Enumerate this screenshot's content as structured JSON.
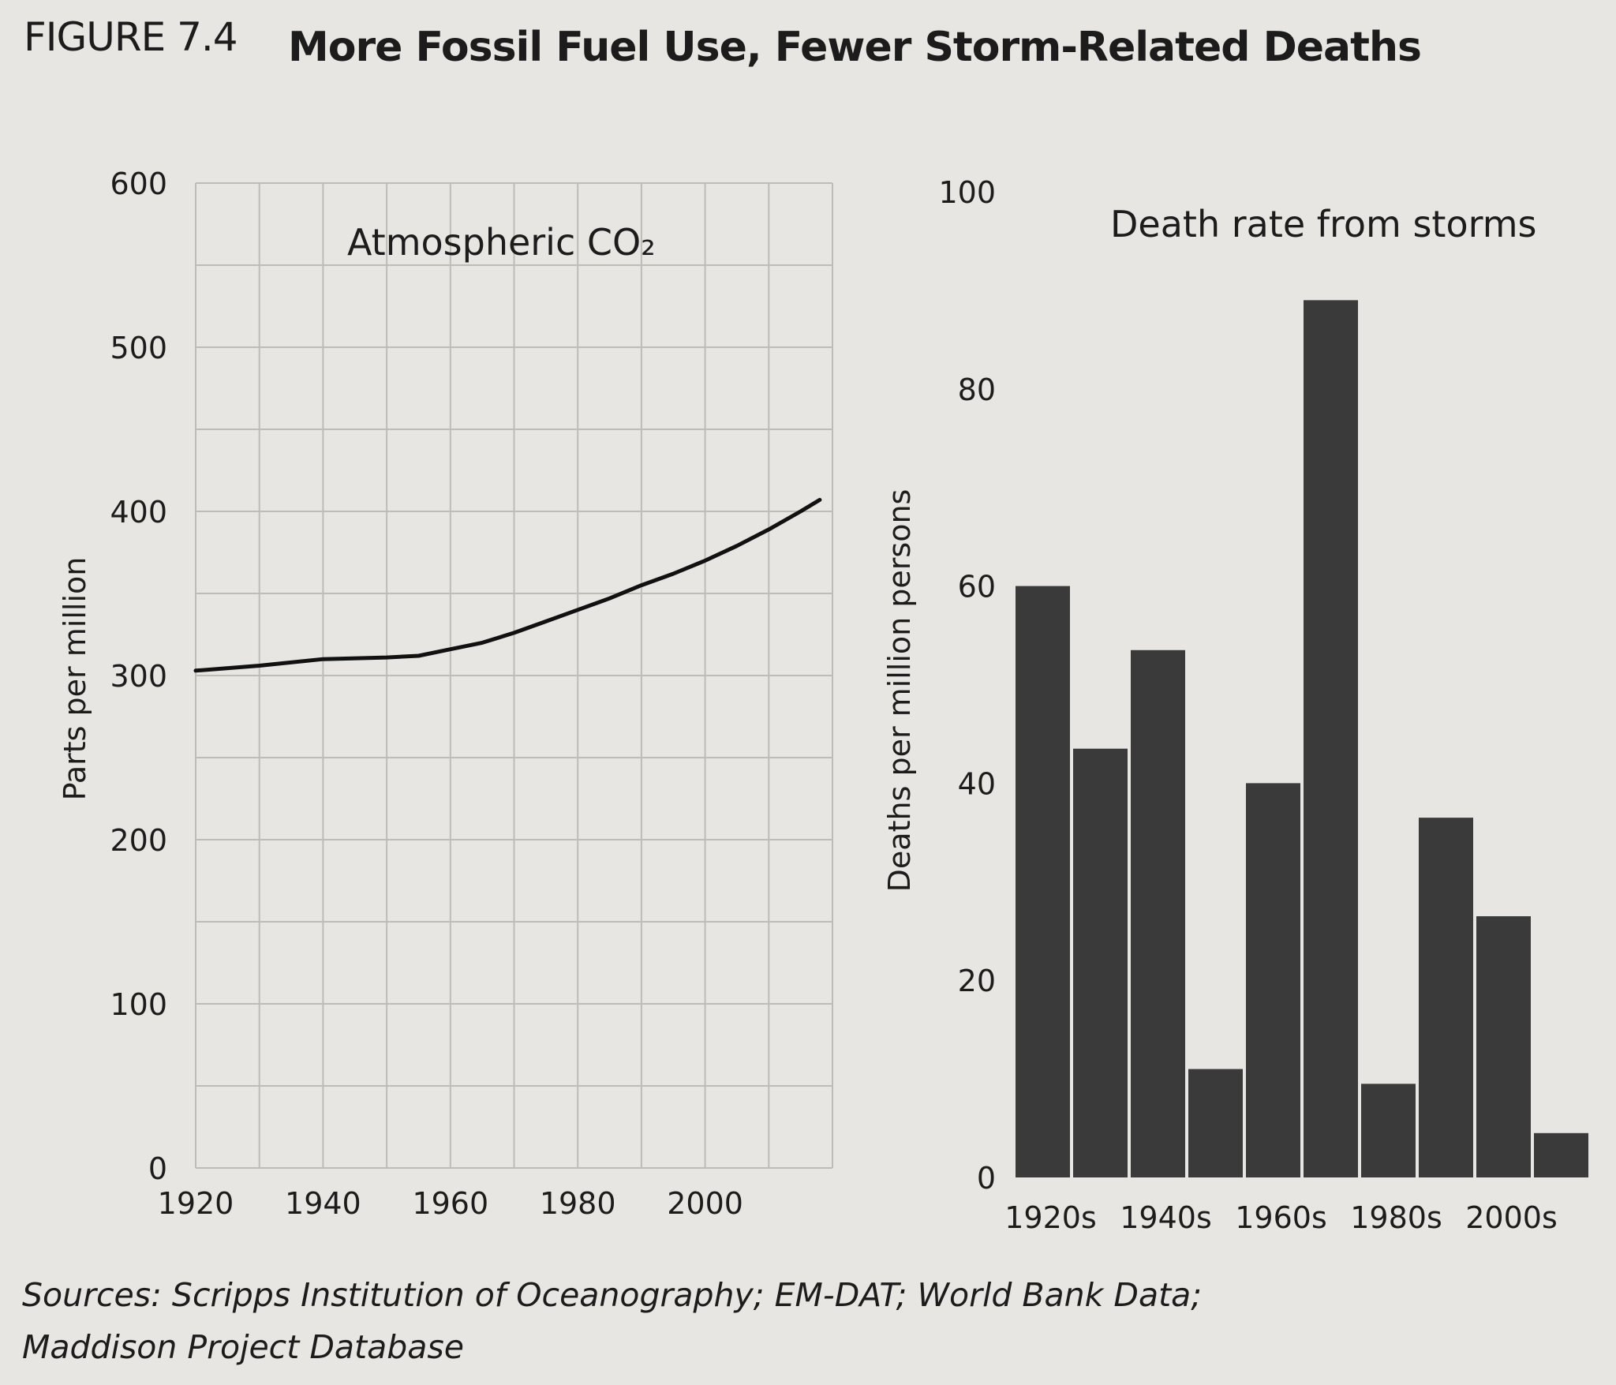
{
  "header": {
    "figure_label": "FIGURE 7.4",
    "title": "More Fossil Fuel Use, Fewer Storm-Related Deaths"
  },
  "footer": {
    "sources_line1": "Sources: Scripps Institution of Oceanography; EM-DAT; World Bank Data;",
    "sources_line2": "Maddison Project Database"
  },
  "colors": {
    "background": "#e7e6e2",
    "bar": "#3a3a3a",
    "line": "#111111",
    "grid": "#bdbcb7"
  },
  "chart_data": [
    {
      "type": "line",
      "title": "Atmospheric CO₂",
      "xlabel": "",
      "ylabel": "Parts per million",
      "xlim": [
        1920,
        2020
      ],
      "ylim": [
        0,
        600
      ],
      "x_ticks": [
        1920,
        1940,
        1960,
        1980,
        2000
      ],
      "y_ticks": [
        0,
        100,
        200,
        300,
        400,
        500,
        600
      ],
      "grid": true,
      "series": [
        {
          "x": [
            1920,
            1930,
            1940,
            1950,
            1955,
            1960,
            1965,
            1970,
            1975,
            1980,
            1985,
            1990,
            1995,
            2000,
            2005,
            2010,
            2015,
            2018
          ],
          "values": [
            303,
            306,
            310,
            311,
            312,
            316,
            320,
            326,
            333,
            340,
            347,
            355,
            362,
            370,
            379,
            389,
            400,
            407
          ]
        }
      ]
    },
    {
      "type": "bar",
      "title": "Death rate from storms",
      "xlabel": "",
      "ylabel": "Deaths per million persons",
      "ylim": [
        0,
        100
      ],
      "y_ticks": [
        0,
        20,
        40,
        60,
        80,
        100
      ],
      "grid": false,
      "categories": [
        "1920s",
        "1930s",
        "1940s",
        "1950s",
        "1960s",
        "1970s",
        "1980s",
        "1990s",
        "2000s",
        "2010s"
      ],
      "tick_labels": [
        "1920s",
        "1940s",
        "1960s",
        "1980s",
        "2000s"
      ],
      "values": [
        60,
        43.5,
        53.5,
        11,
        40,
        89,
        9.5,
        36.5,
        26.5,
        4.5
      ]
    }
  ]
}
